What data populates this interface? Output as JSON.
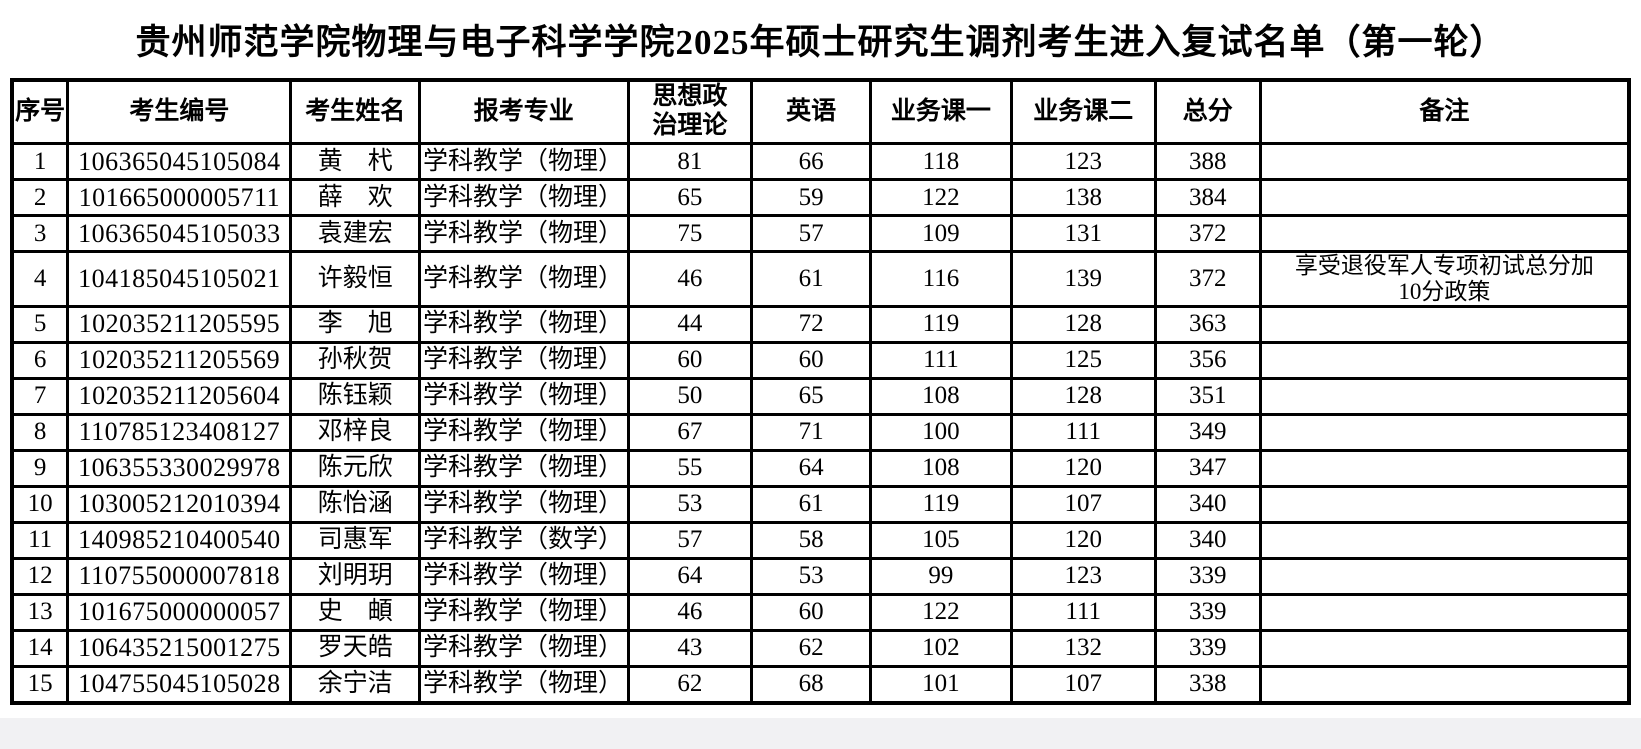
{
  "page": {
    "title": "贵州师范学院物理与电子科学学院2025年硕士研究生调剂考生进入复试名单（第一轮）"
  },
  "table": {
    "headers": {
      "seq": "序号",
      "id": "考生编号",
      "name": "考生姓名",
      "major": "报考专业",
      "politics": "思想政治理论",
      "english": "英语",
      "course1": "业务课一",
      "course2": "业务课二",
      "total": "总分",
      "note": "备注"
    },
    "rows": [
      {
        "seq": "1",
        "id": "106365045105084",
        "name": "黄　杙",
        "major": "学科教学（物理）",
        "politics": "81",
        "english": "66",
        "course1": "118",
        "course2": "123",
        "total": "388",
        "note": ""
      },
      {
        "seq": "2",
        "id": "101665000005711",
        "name": "薛　欢",
        "major": "学科教学（物理）",
        "politics": "65",
        "english": "59",
        "course1": "122",
        "course2": "138",
        "total": "384",
        "note": ""
      },
      {
        "seq": "3",
        "id": "106365045105033",
        "name": "袁建宏",
        "major": "学科教学（物理）",
        "politics": "75",
        "english": "57",
        "course1": "109",
        "course2": "131",
        "total": "372",
        "note": ""
      },
      {
        "seq": "4",
        "id": "104185045105021",
        "name": "许毅恒",
        "major": "学科教学（物理）",
        "politics": "46",
        "english": "61",
        "course1": "116",
        "course2": "139",
        "total": "372",
        "note": "享受退役军人专项初试总分加10分政策"
      },
      {
        "seq": "5",
        "id": "102035211205595",
        "name": "李　旭",
        "major": "学科教学（物理）",
        "politics": "44",
        "english": "72",
        "course1": "119",
        "course2": "128",
        "total": "363",
        "note": ""
      },
      {
        "seq": "6",
        "id": "102035211205569",
        "name": "孙秋贺",
        "major": "学科教学（物理）",
        "politics": "60",
        "english": "60",
        "course1": "111",
        "course2": "125",
        "total": "356",
        "note": ""
      },
      {
        "seq": "7",
        "id": "102035211205604",
        "name": "陈钰颖",
        "major": "学科教学（物理）",
        "politics": "50",
        "english": "65",
        "course1": "108",
        "course2": "128",
        "total": "351",
        "note": ""
      },
      {
        "seq": "8",
        "id": "110785123408127",
        "name": "邓梓良",
        "major": "学科教学（物理）",
        "politics": "67",
        "english": "71",
        "course1": "100",
        "course2": "111",
        "total": "349",
        "note": ""
      },
      {
        "seq": "9",
        "id": "106355330029978",
        "name": "陈元欣",
        "major": "学科教学（物理）",
        "politics": "55",
        "english": "64",
        "course1": "108",
        "course2": "120",
        "total": "347",
        "note": ""
      },
      {
        "seq": "10",
        "id": "103005212010394",
        "name": "陈怡涵",
        "major": "学科教学（物理）",
        "politics": "53",
        "english": "61",
        "course1": "119",
        "course2": "107",
        "total": "340",
        "note": ""
      },
      {
        "seq": "11",
        "id": "140985210400540",
        "name": "司惠军",
        "major": "学科教学（数学）",
        "politics": "57",
        "english": "58",
        "course1": "105",
        "course2": "120",
        "total": "340",
        "note": ""
      },
      {
        "seq": "12",
        "id": "110755000007818",
        "name": "刘明玥",
        "major": "学科教学（物理）",
        "politics": "64",
        "english": "53",
        "course1": "99",
        "course2": "123",
        "total": "339",
        "note": ""
      },
      {
        "seq": "13",
        "id": "101675000000057",
        "name": "史　頔",
        "major": "学科教学（物理）",
        "politics": "46",
        "english": "60",
        "course1": "122",
        "course2": "111",
        "total": "339",
        "note": ""
      },
      {
        "seq": "14",
        "id": "106435215001275",
        "name": "罗天皓",
        "major": "学科教学（物理）",
        "politics": "43",
        "english": "62",
        "course1": "102",
        "course2": "132",
        "total": "339",
        "note": ""
      },
      {
        "seq": "15",
        "id": "104755045105028",
        "name": "余宁洁",
        "major": "学科教学（物理）",
        "politics": "62",
        "english": "68",
        "course1": "101",
        "course2": "107",
        "total": "338",
        "note": ""
      }
    ]
  }
}
